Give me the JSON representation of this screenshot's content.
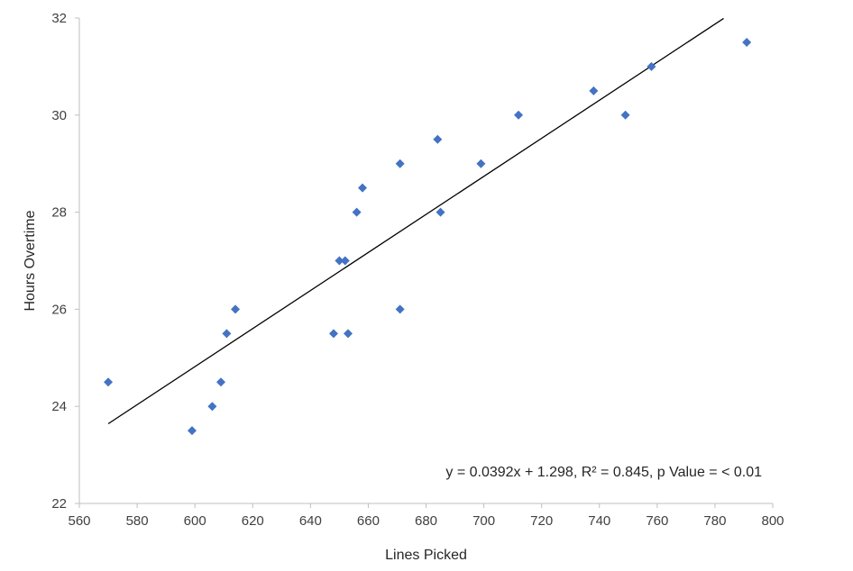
{
  "chart_data": {
    "type": "scatter",
    "xlabel": "Lines Picked",
    "ylabel": "Hours Overtime",
    "xlim": [
      560,
      800
    ],
    "ylim": [
      22,
      32
    ],
    "xticks": [
      "560",
      "580",
      "600",
      "620",
      "640",
      "660",
      "680",
      "700",
      "720",
      "740",
      "760",
      "780",
      "800"
    ],
    "yticks": [
      "22",
      "24",
      "26",
      "28",
      "30",
      "32"
    ],
    "grid": false,
    "marker_color": "#4472C4",
    "trendline_color": "#000000",
    "points": [
      {
        "x": 570,
        "y": 24.5
      },
      {
        "x": 599,
        "y": 23.5
      },
      {
        "x": 606,
        "y": 24.0
      },
      {
        "x": 609,
        "y": 24.5
      },
      {
        "x": 611,
        "y": 25.5
      },
      {
        "x": 614,
        "y": 26.0
      },
      {
        "x": 648,
        "y": 25.5
      },
      {
        "x": 650,
        "y": 27.0
      },
      {
        "x": 652,
        "y": 27.0
      },
      {
        "x": 653,
        "y": 25.5
      },
      {
        "x": 656,
        "y": 28.0
      },
      {
        "x": 658,
        "y": 28.5
      },
      {
        "x": 671,
        "y": 29.0
      },
      {
        "x": 671,
        "y": 26.0
      },
      {
        "x": 684,
        "y": 29.5
      },
      {
        "x": 685,
        "y": 28.0
      },
      {
        "x": 699,
        "y": 29.0
      },
      {
        "x": 712,
        "y": 30.0
      },
      {
        "x": 738,
        "y": 30.5
      },
      {
        "x": 749,
        "y": 30.0
      },
      {
        "x": 758,
        "y": 31.0
      },
      {
        "x": 791,
        "y": 31.5
      }
    ],
    "trendline": {
      "slope": 0.0392,
      "intercept": 1.298,
      "x_range": [
        570,
        783
      ]
    },
    "annotation": "y = 0.0392x + 1.298, R² = 0.845, p Value =  < 0.01"
  }
}
